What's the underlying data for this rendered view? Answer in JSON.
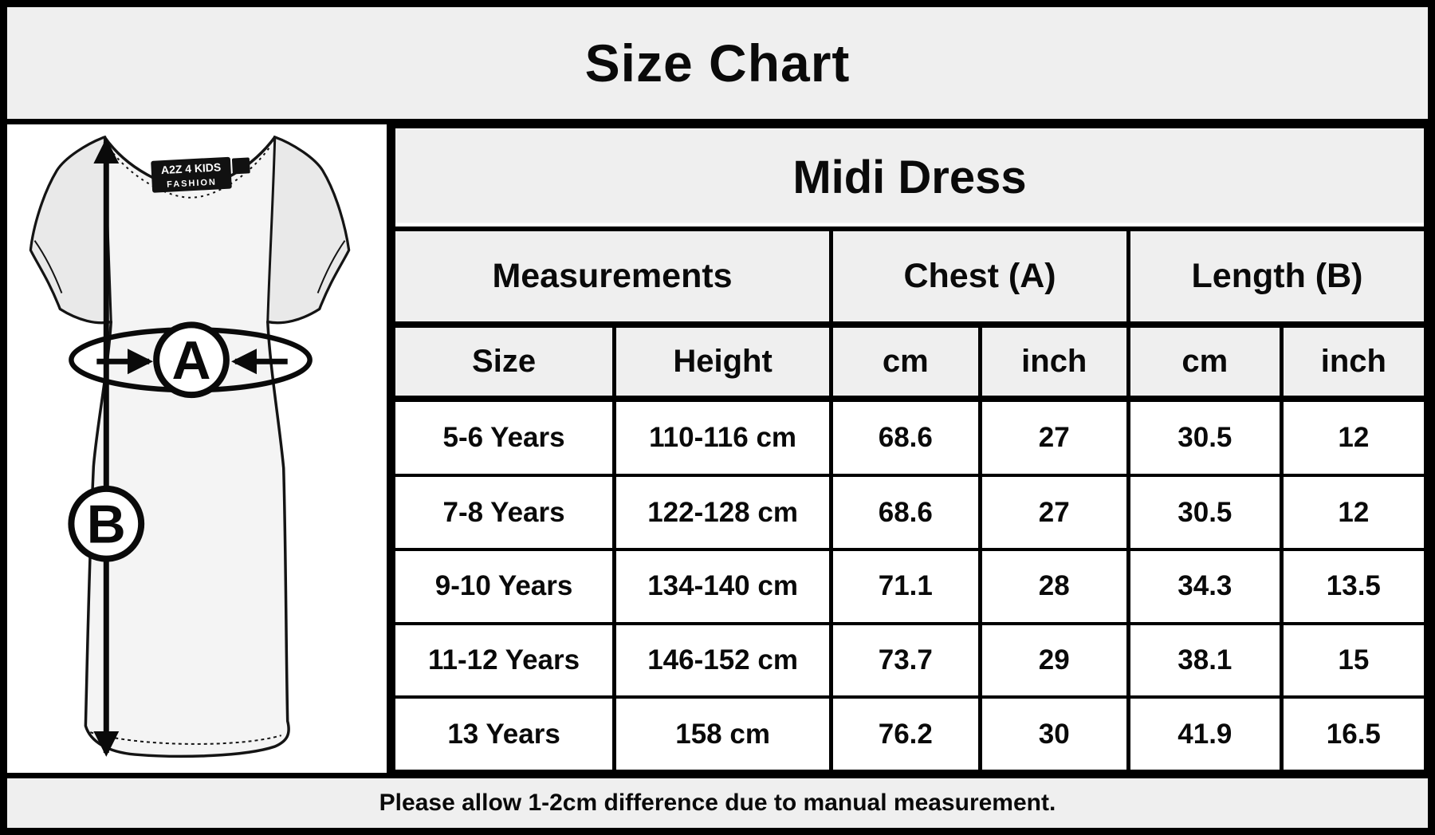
{
  "title": "Size Chart",
  "product": "Midi Dress",
  "diagram": {
    "brand_tag_line1": "A2Z 4 KIDS",
    "brand_tag_line2": "FASHION",
    "marker_a": "A",
    "marker_b": "B"
  },
  "table": {
    "group_headers": [
      {
        "label": "Measurements",
        "span": 2
      },
      {
        "label": "Chest (A)",
        "span": 2
      },
      {
        "label": "Length (B)",
        "span": 2
      }
    ],
    "columns": [
      "Size",
      "Height",
      "cm",
      "inch",
      "cm",
      "inch"
    ],
    "rows": [
      [
        "5-6 Years",
        "110-116 cm",
        "68.6",
        "27",
        "30.5",
        "12"
      ],
      [
        "7-8 Years",
        "122-128 cm",
        "68.6",
        "27",
        "30.5",
        "12"
      ],
      [
        "9-10 Years",
        "134-140 cm",
        "71.1",
        "28",
        "34.3",
        "13.5"
      ],
      [
        "11-12 Years",
        "146-152 cm",
        "73.7",
        "29",
        "38.1",
        "15"
      ],
      [
        "13 Years",
        "158 cm",
        "76.2",
        "30",
        "41.9",
        "16.5"
      ]
    ]
  },
  "footer_note": "Please allow 1-2cm difference due to manual measurement.",
  "colors": {
    "border": "#000000",
    "band_bg": "#efefef",
    "cell_bg": "#ffffff",
    "text": "#0a0a0a"
  }
}
